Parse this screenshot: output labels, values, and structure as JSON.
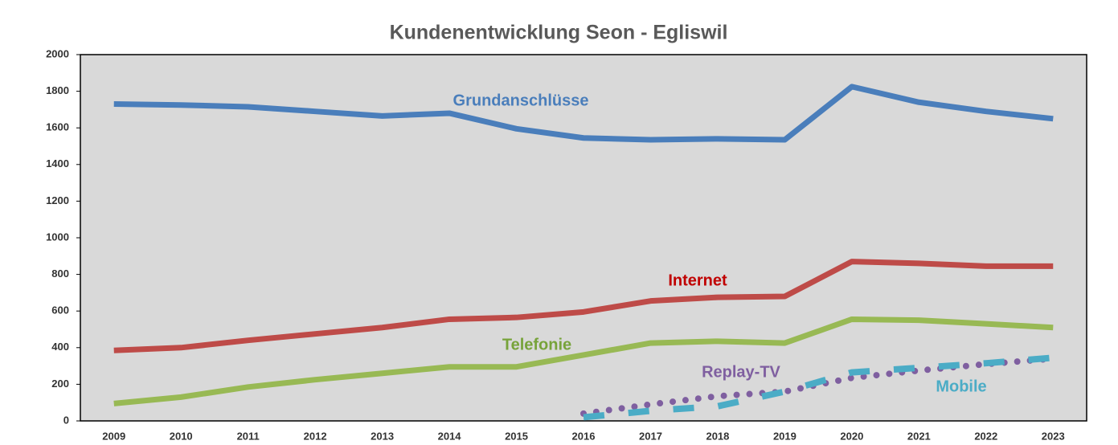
{
  "chart_data": {
    "type": "line",
    "title": "Kundenentwicklung Seon - Egliswil",
    "categories": [
      "2009",
      "2010",
      "2011",
      "2012",
      "2013",
      "2014",
      "2015",
      "2016",
      "2017",
      "2018",
      "2019",
      "2020",
      "2021",
      "2022",
      "2023"
    ],
    "series": [
      {
        "name": "Grundanschlüsse",
        "color": "#4a7ebb",
        "style": "solid",
        "values": [
          1730,
          1725,
          1715,
          1690,
          1665,
          1680,
          1595,
          1545,
          1535,
          1540,
          1535,
          1825,
          1740,
          1690,
          1650
        ]
      },
      {
        "name": "Internet",
        "color": "#be4b48",
        "label_color": "#c00000",
        "style": "solid",
        "values": [
          385,
          400,
          440,
          475,
          510,
          555,
          565,
          595,
          655,
          675,
          680,
          870,
          860,
          845,
          845
        ]
      },
      {
        "name": "Telefonie",
        "color": "#98b954",
        "label_color": "#77a33a",
        "style": "solid",
        "values": [
          95,
          130,
          185,
          225,
          260,
          295,
          295,
          360,
          425,
          435,
          425,
          555,
          550,
          530,
          510
        ]
      },
      {
        "name": "Replay-TV",
        "color": "#7f5fa0",
        "style": "dotted",
        "values": [
          null,
          null,
          null,
          null,
          null,
          null,
          null,
          40,
          90,
          135,
          160,
          235,
          275,
          310,
          340
        ]
      },
      {
        "name": "Mobile",
        "color": "#4bacc6",
        "style": "dashed",
        "values": [
          null,
          null,
          null,
          null,
          null,
          null,
          null,
          20,
          55,
          80,
          160,
          265,
          290,
          315,
          345
        ]
      }
    ],
    "ylim": [
      0,
      2000
    ],
    "yticks": [
      0,
      200,
      400,
      600,
      800,
      1000,
      1200,
      1400,
      1600,
      1800,
      2000
    ],
    "grid": false
  }
}
